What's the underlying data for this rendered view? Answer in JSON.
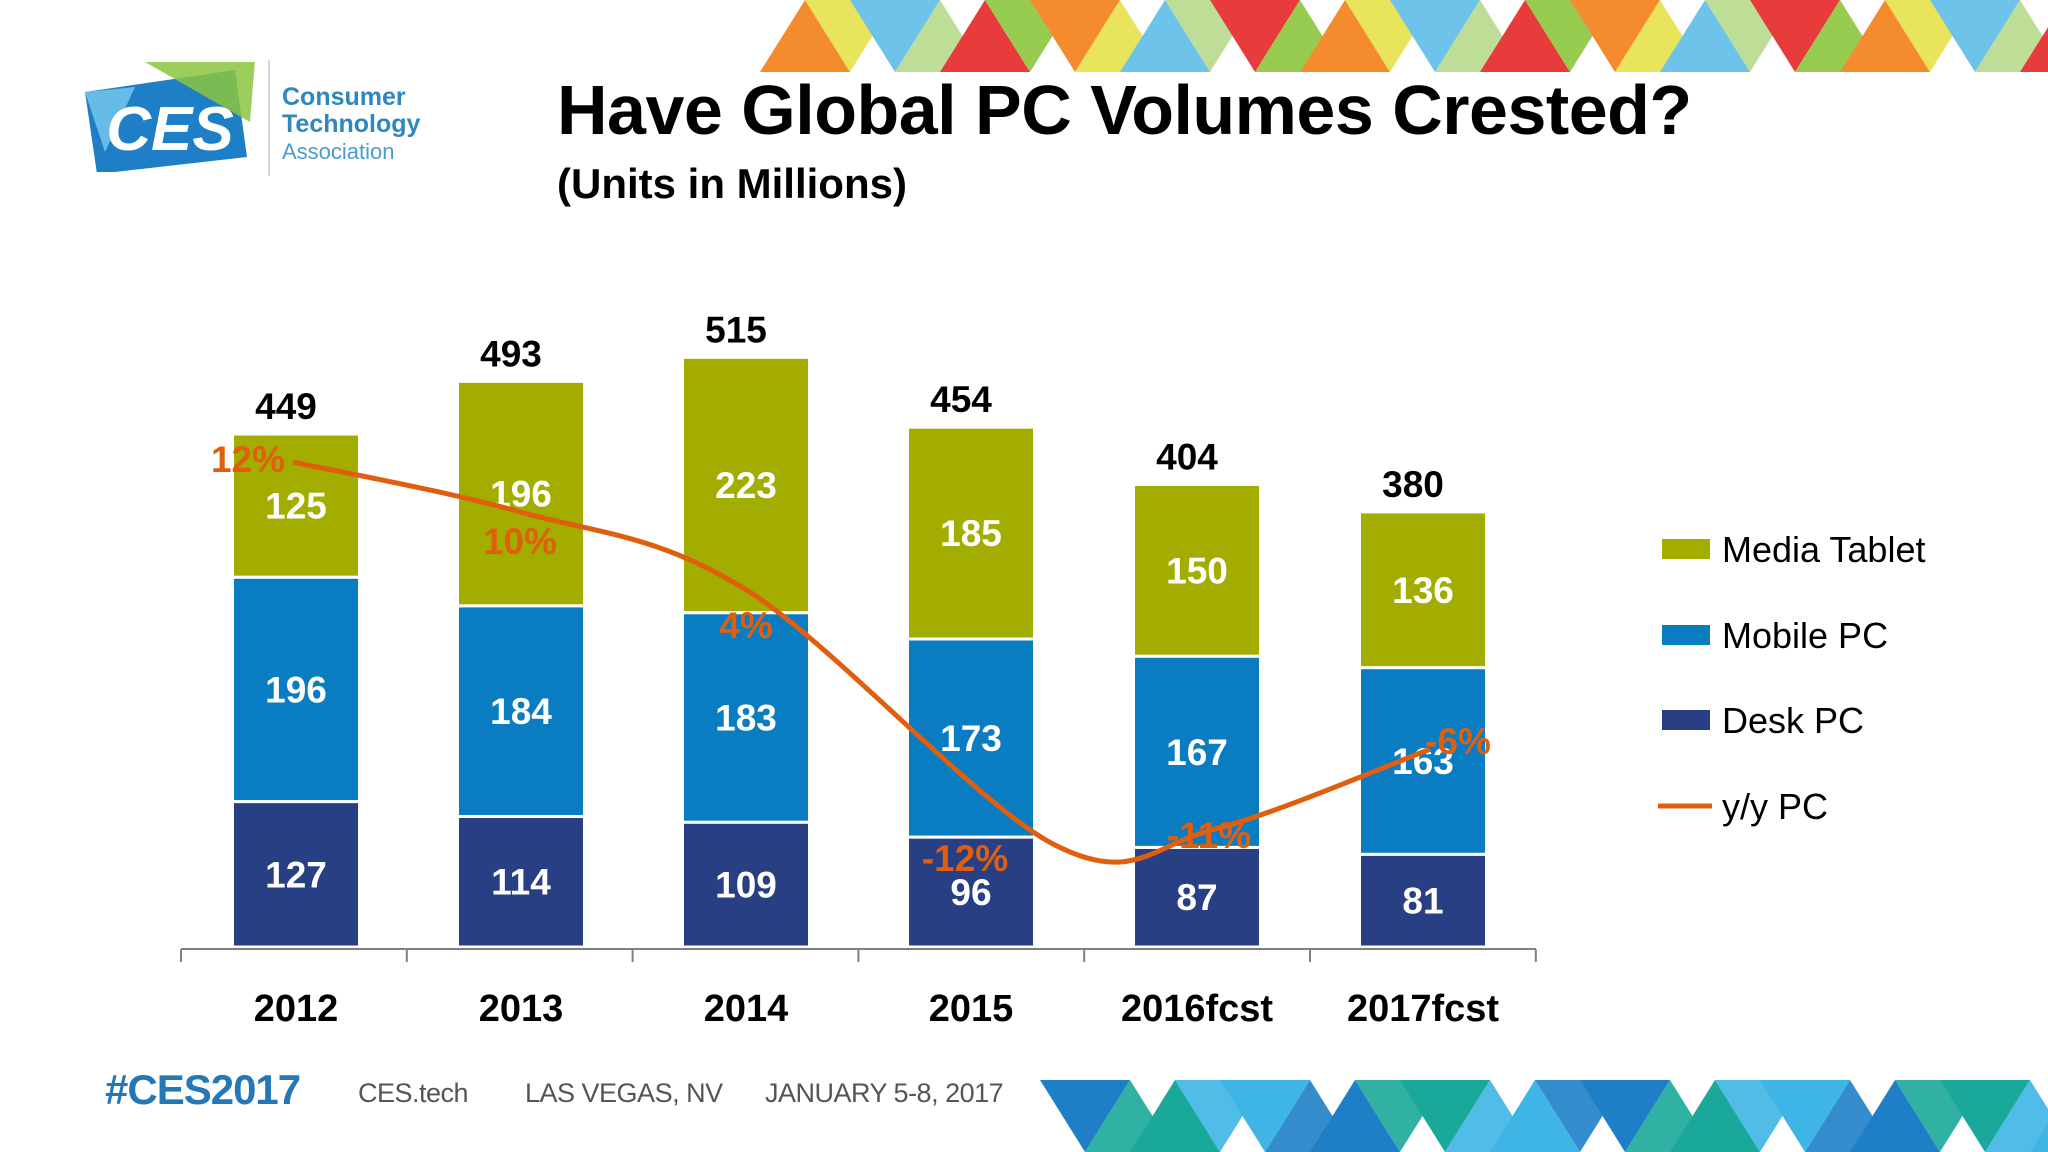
{
  "header": {
    "title": "Have Global PC Volumes Crested?",
    "subtitle": "(Units in Millions)"
  },
  "logo": {
    "badge_text": "CES",
    "org_line1": "Consumer",
    "org_line2": "Technology",
    "org_line3": "Association"
  },
  "footer": {
    "hashtag": "#CES2017",
    "site": "CES.tech",
    "location": "LAS VEGAS, NV",
    "dates": "JANUARY 5-8, 2017"
  },
  "colors": {
    "media_tablet": "#a3ad00",
    "mobile_pc": "#0a7dc2",
    "desk_pc": "#283f84",
    "yy_line": "#df5f0f",
    "accent_blue": "#2478b8"
  },
  "chart_data": {
    "type": "bar",
    "stacked": true,
    "categories": [
      "2012",
      "2013",
      "2014",
      "2015",
      "2016fcst",
      "2017fcst"
    ],
    "series": [
      {
        "name": "Desk PC",
        "values": [
          127,
          114,
          109,
          96,
          87,
          81
        ]
      },
      {
        "name": "Mobile PC",
        "values": [
          196,
          184,
          183,
          173,
          167,
          163
        ]
      },
      {
        "name": "Media Tablet",
        "values": [
          125,
          196,
          223,
          185,
          150,
          136
        ]
      }
    ],
    "totals": [
      449,
      493,
      515,
      454,
      404,
      380
    ],
    "line_series": {
      "name": "y/y PC",
      "values": [
        12,
        10,
        4,
        -12,
        -11,
        -6
      ],
      "labels": [
        "12%",
        "10%",
        "4%",
        "-12%",
        "-11%",
        "-6%"
      ],
      "unit": "%"
    },
    "legend": [
      "Media Tablet",
      "Mobile PC",
      "Desk PC",
      "y/y PC"
    ],
    "legend_position": "right",
    "grid": false,
    "title": "Have Global PC Volumes Crested?",
    "subtitle": "(Units in Millions)"
  }
}
